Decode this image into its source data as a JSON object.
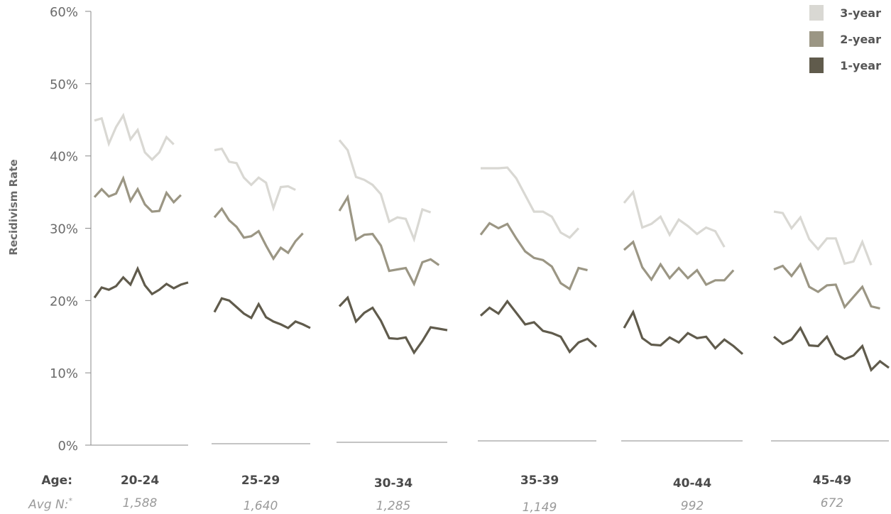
{
  "chart_data": {
    "type": "line",
    "ylabel": "Recidivism Rate",
    "ylim": [
      0,
      60
    ],
    "y_ticks": [
      "0%",
      "10%",
      "20%",
      "30%",
      "40%",
      "50%",
      "60%"
    ],
    "grid": false,
    "legend_position": "top-right",
    "legend": [
      "3-year",
      "2-year",
      "1-year"
    ],
    "colors": {
      "3-year": "#d9d8d3",
      "2-year": "#9b9684",
      "1-year": "#605b4c"
    },
    "row_labels": {
      "age": "Age:",
      "n": "Avg N:",
      "n_mark": "*"
    },
    "panels": [
      {
        "age": "20-24",
        "avg_n": "1,588",
        "series": [
          {
            "name": "3-year",
            "values": [
              44.9,
              45.2,
              41.7,
              44.0,
              45.6,
              42.3,
              43.6,
              40.5,
              39.5,
              40.5,
              42.6,
              41.6
            ]
          },
          {
            "name": "2-year",
            "values": [
              34.3,
              35.4,
              34.4,
              34.8,
              36.9,
              33.8,
              35.4,
              33.3,
              32.3,
              32.4,
              34.9,
              33.6,
              34.6
            ]
          },
          {
            "name": "1-year",
            "values": [
              20.4,
              21.8,
              21.5,
              22.0,
              23.2,
              22.2,
              24.4,
              22.1,
              20.9,
              21.5,
              22.3,
              21.7,
              22.2,
              22.5
            ]
          }
        ]
      },
      {
        "age": "25-29",
        "avg_n": "1,640",
        "series": [
          {
            "name": "3-year",
            "values": [
              40.8,
              41.0,
              39.2,
              39.0,
              37.0,
              36.0,
              37.0,
              36.3,
              32.8,
              35.7,
              35.8,
              35.3
            ]
          },
          {
            "name": "2-year",
            "values": [
              31.5,
              32.7,
              31.1,
              30.2,
              28.7,
              28.9,
              29.6,
              27.6,
              25.8,
              27.3,
              26.6,
              28.2,
              29.3
            ]
          },
          {
            "name": "1-year",
            "values": [
              18.4,
              20.3,
              20.0,
              19.1,
              18.2,
              17.6,
              19.5,
              17.7,
              17.1,
              16.7,
              16.2,
              17.1,
              16.7,
              16.2
            ]
          }
        ]
      },
      {
        "age": "30-34",
        "avg_n": "1,285",
        "series": [
          {
            "name": "3-year",
            "values": [
              42.2,
              40.8,
              37.1,
              36.7,
              36.0,
              34.7,
              30.9,
              31.5,
              31.3,
              28.5,
              32.6,
              32.2
            ]
          },
          {
            "name": "2-year",
            "values": [
              32.4,
              34.3,
              28.4,
              29.1,
              29.2,
              27.6,
              24.1,
              24.3,
              24.5,
              22.3,
              25.3,
              25.7,
              24.9
            ]
          },
          {
            "name": "1-year",
            "values": [
              19.2,
              20.4,
              17.1,
              18.3,
              19.0,
              17.2,
              14.8,
              14.7,
              14.9,
              12.8,
              14.4,
              16.3,
              16.1,
              15.9
            ]
          }
        ]
      },
      {
        "age": "35-39",
        "avg_n": "1,149",
        "series": [
          {
            "name": "3-year",
            "values": [
              38.3,
              38.3,
              38.3,
              38.4,
              36.9,
              34.6,
              32.3,
              32.3,
              31.6,
              29.4,
              28.7,
              30.0
            ]
          },
          {
            "name": "2-year",
            "values": [
              29.1,
              30.7,
              30.0,
              30.6,
              28.6,
              26.8,
              25.9,
              25.6,
              24.7,
              22.4,
              21.6,
              24.5,
              24.2
            ]
          },
          {
            "name": "1-year",
            "values": [
              17.9,
              19.0,
              18.2,
              19.9,
              18.3,
              16.7,
              17.0,
              15.8,
              15.5,
              15.0,
              12.9,
              14.2,
              14.7,
              13.6
            ]
          }
        ]
      },
      {
        "age": "40-44",
        "avg_n": "992",
        "series": [
          {
            "name": "3-year",
            "values": [
              33.5,
              35.0,
              30.1,
              30.6,
              31.6,
              29.1,
              31.2,
              30.3,
              29.2,
              30.1,
              29.6,
              27.4
            ]
          },
          {
            "name": "2-year",
            "values": [
              27.0,
              28.1,
              24.6,
              22.9,
              25.0,
              23.1,
              24.5,
              23.1,
              24.2,
              22.2,
              22.8,
              22.8,
              24.2
            ]
          },
          {
            "name": "1-year",
            "values": [
              16.2,
              18.4,
              14.8,
              13.9,
              13.8,
              14.9,
              14.2,
              15.5,
              14.8,
              15.0,
              13.4,
              14.6,
              13.7,
              12.6
            ]
          }
        ]
      },
      {
        "age": "45-49",
        "avg_n": "672",
        "series": [
          {
            "name": "3-year",
            "values": [
              32.3,
              32.1,
              30.0,
              31.5,
              28.5,
              27.1,
              28.6,
              28.6,
              25.1,
              25.4,
              28.1,
              24.9
            ]
          },
          {
            "name": "2-year",
            "values": [
              24.3,
              24.8,
              23.4,
              25.0,
              21.9,
              21.2,
              22.1,
              22.2,
              19.1,
              20.5,
              21.9,
              19.2,
              18.9
            ]
          },
          {
            "name": "1-year",
            "values": [
              15.0,
              14.0,
              14.6,
              16.2,
              13.8,
              13.7,
              15.0,
              12.6,
              11.9,
              12.4,
              13.7,
              10.4,
              11.6,
              10.7
            ]
          }
        ]
      }
    ]
  }
}
